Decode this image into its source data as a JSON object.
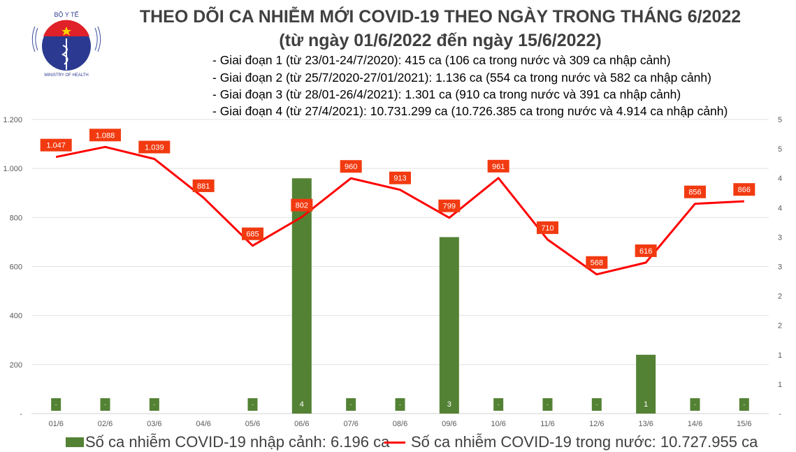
{
  "header": {
    "logo_text_top": "BỘ Y TẾ",
    "logo_text_bottom": "MINISTRY OF HEALTH",
    "title": "THEO DÕI CA NHIỄM MỚI COVID-19 THEO NGÀY TRONG THÁNG 6/2022",
    "subtitle": "(từ ngày 01/6/2022 đến ngày 15/6/2022)",
    "phases": [
      "- Giai đoạn 1 (từ 23/01-24/7/2020): 415 ca (106 ca trong nước và 309 ca nhập cảnh)",
      "- Giai đoạn 2 (từ 25/7/2020-27/01/2021): 1.136 ca (554 ca trong nước và 582 ca nhập cảnh)",
      "- Giai đoạn 3 (từ 28/01-26/4/2021): 1.301 ca (910 ca trong nước và 391 ca nhập cảnh)",
      "- Giai đoạn 4 (từ 27/4/2021): 10.731.299 ca (10.726.385 ca trong nước và 4.914 ca nhập cảnh)"
    ]
  },
  "chart_data": {
    "type": "bar+line",
    "categories": [
      "01/6",
      "02/6",
      "03/6",
      "04/6",
      "05/6",
      "06/6",
      "07/6",
      "08/6",
      "09/6",
      "10/6",
      "11/6",
      "12/6",
      "13/6",
      "14/6",
      "15/6"
    ],
    "series": [
      {
        "name": "Số ca nhiễm COVID-19 nhập cảnh: 6.196 ca",
        "type": "bar",
        "axis": "right",
        "color": "#548235",
        "values": [
          0,
          0,
          0,
          null,
          0,
          4,
          0,
          0,
          3,
          0,
          0,
          0,
          1,
          0,
          0
        ],
        "labels": [
          "-",
          "-",
          "-",
          "",
          "-",
          "4",
          "-",
          "-",
          "3",
          "-",
          "-",
          "-",
          "1",
          "-",
          "-"
        ]
      },
      {
        "name": "Số ca nhiễm COVID-19 trong nước: 10.727.955 ca",
        "type": "line",
        "axis": "left",
        "color": "#ff0000",
        "label_color": "#f23a10",
        "values": [
          1047,
          1088,
          1039,
          881,
          685,
          802,
          960,
          913,
          799,
          961,
          710,
          568,
          616,
          856,
          866
        ],
        "labels": [
          "1.047",
          "1.088",
          "1.039",
          "881",
          "685",
          "802",
          "960",
          "913",
          "799",
          "961",
          "710",
          "568",
          "616",
          "856",
          "866"
        ]
      }
    ],
    "y_left": {
      "range": [
        0,
        1200
      ],
      "ticks": [
        "-",
        "200",
        "400",
        "600",
        "800",
        "1.000",
        "1.200"
      ]
    },
    "y_right": {
      "range": [
        0,
        5
      ],
      "ticks": [
        "-",
        "1",
        "1",
        "2",
        "2",
        "3",
        "3",
        "4",
        "4",
        "5",
        "5"
      ]
    },
    "grid": true,
    "legend": "bottom"
  }
}
